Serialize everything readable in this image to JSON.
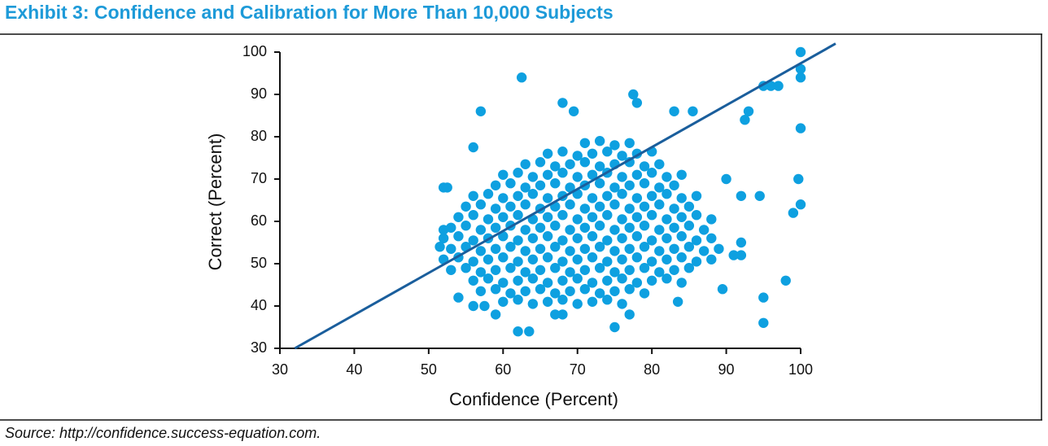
{
  "chart_data": {
    "type": "scatter",
    "title": "Exhibit 3: Confidence and Calibration for More Than 10,000 Subjects",
    "x_label": "Confidence (Percent)",
    "y_label": "Correct (Percent)",
    "source": "Source: http://confidence.success-equation.com.",
    "color": "#0ea0e0",
    "xlim": [
      30,
      100
    ],
    "ylim": [
      30,
      100
    ],
    "xticks": [
      30,
      40,
      50,
      60,
      70,
      80,
      90,
      100
    ],
    "yticks": [
      30,
      40,
      50,
      60,
      70,
      80,
      90,
      100
    ],
    "x": [
      60,
      62,
      64,
      66,
      68,
      70,
      72,
      74,
      76,
      57,
      59,
      61,
      63,
      65,
      67,
      69,
      71,
      73,
      75,
      77,
      79,
      56,
      58,
      60,
      62,
      64,
      66,
      68,
      70,
      72,
      74,
      76,
      78,
      80,
      82,
      84,
      53,
      55,
      57,
      59,
      61,
      63,
      65,
      67,
      69,
      71,
      73,
      75,
      77,
      79,
      81,
      83,
      85,
      52,
      54,
      56,
      58,
      60,
      62,
      64,
      66,
      68,
      70,
      72,
      74,
      76,
      78,
      80,
      82,
      84,
      86,
      88,
      53,
      55,
      57,
      59,
      61,
      63,
      65,
      67,
      69,
      71,
      73,
      75,
      77,
      79,
      81,
      83,
      85,
      87,
      89,
      52,
      54,
      56,
      58,
      60,
      62,
      64,
      66,
      68,
      70,
      72,
      74,
      76,
      78,
      80,
      82,
      84,
      86,
      88,
      53,
      55,
      57,
      59,
      61,
      63,
      65,
      67,
      69,
      71,
      73,
      75,
      77,
      79,
      81,
      83,
      85,
      87,
      54,
      56,
      58,
      60,
      62,
      64,
      66,
      68,
      70,
      72,
      74,
      76,
      78,
      80,
      82,
      84,
      86,
      88,
      55,
      57,
      59,
      61,
      63,
      65,
      67,
      69,
      71,
      73,
      75,
      77,
      79,
      81,
      83,
      85,
      56,
      58,
      60,
      62,
      64,
      66,
      68,
      70,
      72,
      74,
      76,
      78,
      80,
      82,
      84,
      86,
      59,
      61,
      63,
      65,
      67,
      69,
      71,
      73,
      75,
      77,
      79,
      81,
      83,
      60,
      62,
      64,
      66,
      68,
      70,
      72,
      74,
      76,
      78,
      80,
      82,
      84,
      63,
      65,
      67,
      69,
      71,
      73,
      75,
      77,
      79,
      81,
      66,
      68,
      70,
      72,
      74,
      76,
      78,
      80,
      71,
      73,
      75,
      77,
      100,
      100,
      100,
      100,
      99.7,
      100,
      99,
      98,
      95,
      95,
      94.5,
      96,
      97,
      95,
      93,
      92.5,
      92,
      90,
      89.5,
      91,
      92,
      92,
      62.5,
      57,
      75,
      62,
      63.5,
      68,
      69.5,
      77.5,
      78,
      83,
      85.5,
      52,
      52.5,
      51.5,
      52,
      56,
      57.5,
      59,
      54,
      56,
      83.5,
      77,
      67,
      68
    ],
    "values": [
      41,
      41.5,
      40.5,
      41,
      41.5,
      40.5,
      41,
      41.5,
      40.5,
      43.5,
      44,
      43,
      43.5,
      44,
      43,
      43.5,
      44,
      43,
      43.5,
      44,
      43,
      46,
      46.5,
      45.5,
      46,
      46.5,
      45.5,
      46,
      46.5,
      45.5,
      46,
      46.5,
      45.5,
      46,
      46.5,
      45.5,
      48.5,
      49,
      48,
      48.5,
      49,
      48,
      48.5,
      49,
      48,
      48.5,
      49,
      48,
      48.5,
      49,
      48,
      48.5,
      49,
      51,
      51.5,
      50.5,
      51,
      51.5,
      50.5,
      51,
      51.5,
      50.5,
      51,
      51.5,
      50.5,
      51,
      51.5,
      50.5,
      51,
      51.5,
      50.5,
      51,
      53.5,
      54,
      53,
      53.5,
      54,
      53,
      53.5,
      54,
      53,
      53.5,
      54,
      53,
      53.5,
      54,
      53,
      53.5,
      54,
      53,
      53.5,
      56,
      56.5,
      55.5,
      56,
      56.5,
      55.5,
      56,
      56.5,
      55.5,
      56,
      56.5,
      55.5,
      56,
      56.5,
      55.5,
      56,
      56.5,
      55.5,
      56,
      58.5,
      59,
      58,
      58.5,
      59,
      58,
      58.5,
      59,
      58,
      58.5,
      59,
      58,
      58.5,
      59,
      58,
      58.5,
      59,
      58,
      61,
      61.5,
      60.5,
      61,
      61.5,
      60.5,
      61,
      61.5,
      60.5,
      61,
      61.5,
      60.5,
      61,
      61.5,
      60.5,
      61,
      61.5,
      60.5,
      63.5,
      64,
      63,
      63.5,
      64,
      63,
      63.5,
      64,
      63,
      63.5,
      64,
      63,
      63.5,
      64,
      63,
      63.5,
      66,
      66.5,
      65.5,
      66,
      66.5,
      65.5,
      66,
      66.5,
      65.5,
      66,
      66.5,
      65.5,
      66,
      66.5,
      65.5,
      66,
      68.5,
      69,
      68,
      68.5,
      69,
      68,
      68.5,
      69,
      68,
      68.5,
      69,
      68,
      68.5,
      71,
      71.5,
      70.5,
      71,
      71.5,
      70.5,
      71,
      71.5,
      70.5,
      71,
      71.5,
      70.5,
      71,
      73.5,
      74,
      73,
      73.5,
      74,
      73,
      73.5,
      74,
      73,
      73.5,
      76,
      76.5,
      75.5,
      76,
      76.5,
      75.5,
      76,
      76.5,
      78.5,
      79,
      78,
      78.5,
      100,
      96,
      94,
      82,
      70,
      64,
      62,
      46,
      42,
      36,
      66,
      92,
      92,
      92,
      86,
      84,
      66,
      70,
      44,
      52,
      55,
      52,
      94,
      86,
      35,
      34,
      34,
      88,
      86,
      90,
      88,
      86,
      86,
      68,
      68,
      54,
      58,
      77.5,
      40,
      38,
      42,
      40,
      41,
      38,
      38,
      38
    ],
    "line": {
      "x": [
        32,
        104.7
      ],
      "y": [
        30,
        102
      ],
      "color": "#1a5e9c"
    }
  }
}
